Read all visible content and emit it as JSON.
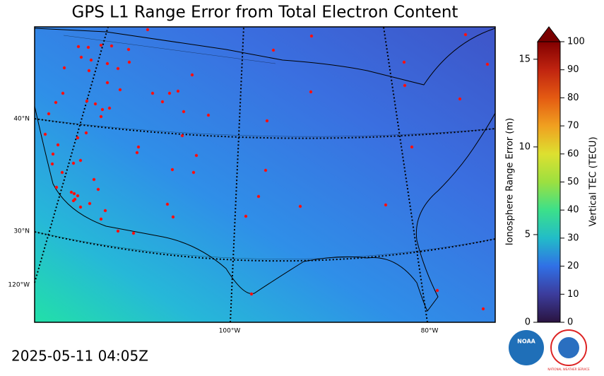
{
  "title": "GPS L1 Range Error from Total Electron Content",
  "timestamp": "2025-05-11 04:05Z",
  "map": {
    "lat_labels": [
      "40°N",
      "30°N"
    ],
    "lon_labels": [
      "120°W",
      "100°W",
      "80°W"
    ]
  },
  "colorbar": {
    "left_label": "Ionosphere Range Error (m)",
    "left_lim": [
      0,
      16.0
    ],
    "left_ticks": [
      0,
      5,
      10,
      15
    ],
    "right_label": "Vertical TEC (TECU)",
    "right_lim": [
      0,
      100
    ],
    "right_ticks": [
      0,
      10,
      20,
      30,
      40,
      50,
      60,
      70,
      80,
      90,
      100
    ]
  },
  "logos": [
    "NOAA",
    "NATIONAL WEATHER SERVICE"
  ]
}
